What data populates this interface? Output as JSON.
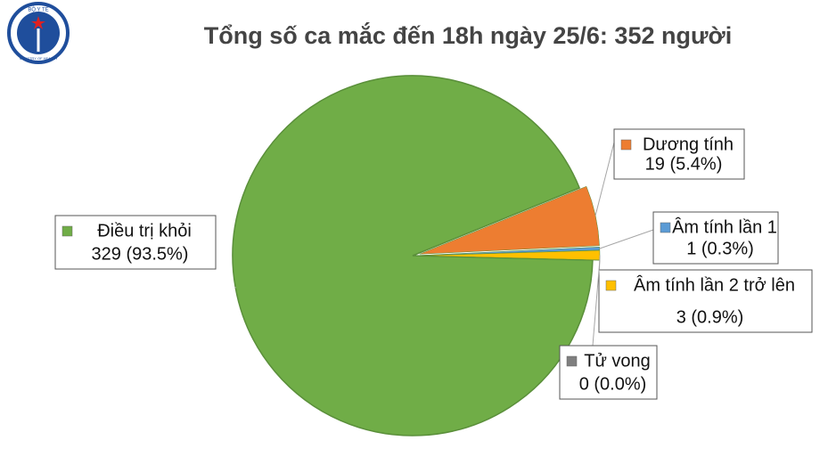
{
  "logo": {
    "top": "BỘ Y TẾ",
    "bottom": "MINISTRY OF HEALTH"
  },
  "chart_data": {
    "type": "pie",
    "title": "Tổng số ca mắc đến 18h ngày 25/6: 352 người",
    "categories": [
      "Điều trị khỏi",
      "Dương tính",
      "Âm tính lần 1",
      "Âm tính lần 2 trở lên",
      "Tử vong"
    ],
    "values": [
      329,
      19,
      1,
      3,
      0
    ],
    "value_labels": [
      "329 (93.5%)",
      "19 (5.4%)",
      "1 (0.3%)",
      "3 (0.9%)",
      "0 (0.0%)"
    ],
    "colors": [
      "#70ad47",
      "#ed7d31",
      "#5b9bd5",
      "#ffc000",
      "#7f7f7f"
    ]
  }
}
